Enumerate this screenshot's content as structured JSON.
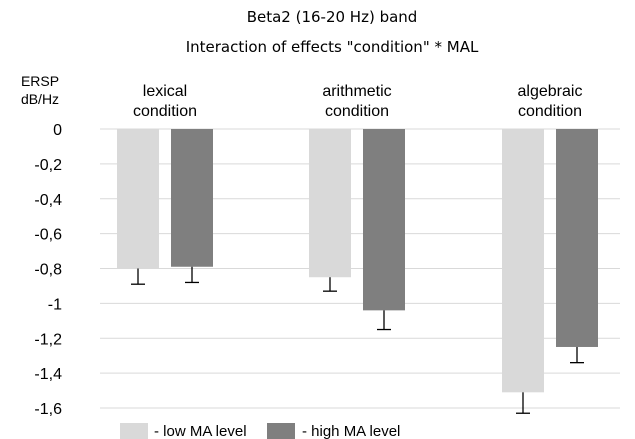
{
  "chart_data": {
    "type": "bar",
    "title": "Beta2 (16-20 Hz) band",
    "subtitle": "Interaction of effects \"condition\" * MAL",
    "ylabel": [
      "ERSP",
      "dB/Hz"
    ],
    "xlabel": "",
    "ylim": [
      -1.6,
      0
    ],
    "ytick_step": 0.2,
    "yticks": [
      "0",
      "-0,2",
      "-0,4",
      "-0,6",
      "-0,8",
      "-1",
      "-1,2",
      "-1,4",
      "-1,6"
    ],
    "grid": true,
    "categories": [
      [
        "lexical",
        "condition"
      ],
      [
        "arithmetic",
        "condition"
      ],
      [
        "algebraic",
        "condition"
      ]
    ],
    "series": [
      {
        "name": "- low MA level",
        "color": "#d9d9d9",
        "values": [
          -0.8,
          -0.85,
          -1.51
        ],
        "errors": [
          0.09,
          0.08,
          0.12
        ]
      },
      {
        "name": "- high MA level",
        "color": "#7f7f7f",
        "values": [
          -0.79,
          -1.04,
          -1.25
        ],
        "errors": [
          0.09,
          0.11,
          0.09
        ]
      }
    ],
    "legend": "bottom"
  }
}
